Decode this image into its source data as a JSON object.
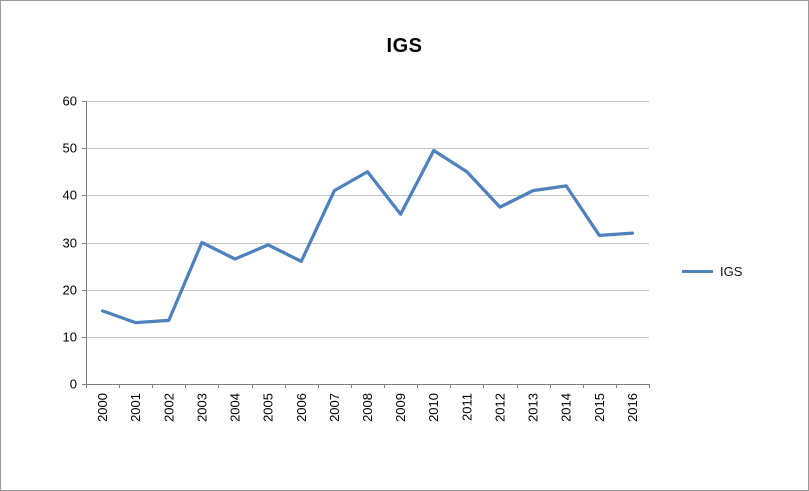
{
  "title": "IGS",
  "legend": {
    "label": "IGS",
    "line_color": "#4F81BD"
  },
  "colors": {
    "line": "#4F81BD",
    "gridline": "#c6c6c6",
    "axis": "#7f7f7f",
    "text": "#000000"
  },
  "chart_data": {
    "type": "line",
    "title": "IGS",
    "categories": [
      "2000",
      "2001",
      "2002",
      "2003",
      "2004",
      "2005",
      "2006",
      "2007",
      "2008",
      "2009",
      "2010",
      "2011",
      "2012",
      "2013",
      "2014",
      "2015",
      "2016"
    ],
    "series": [
      {
        "name": "IGS",
        "values": [
          15.5,
          13,
          13.5,
          30,
          26.5,
          29.5,
          26,
          41,
          45,
          36,
          49.5,
          45,
          37.5,
          41,
          42,
          31.5,
          32
        ]
      }
    ],
    "xlabel": "",
    "ylabel": "",
    "ylim": [
      0,
      60
    ],
    "yticks": [
      0,
      10,
      20,
      30,
      40,
      50,
      60
    ],
    "grid": "horizontal",
    "legend_position": "right",
    "x_label_rotation": -90
  }
}
